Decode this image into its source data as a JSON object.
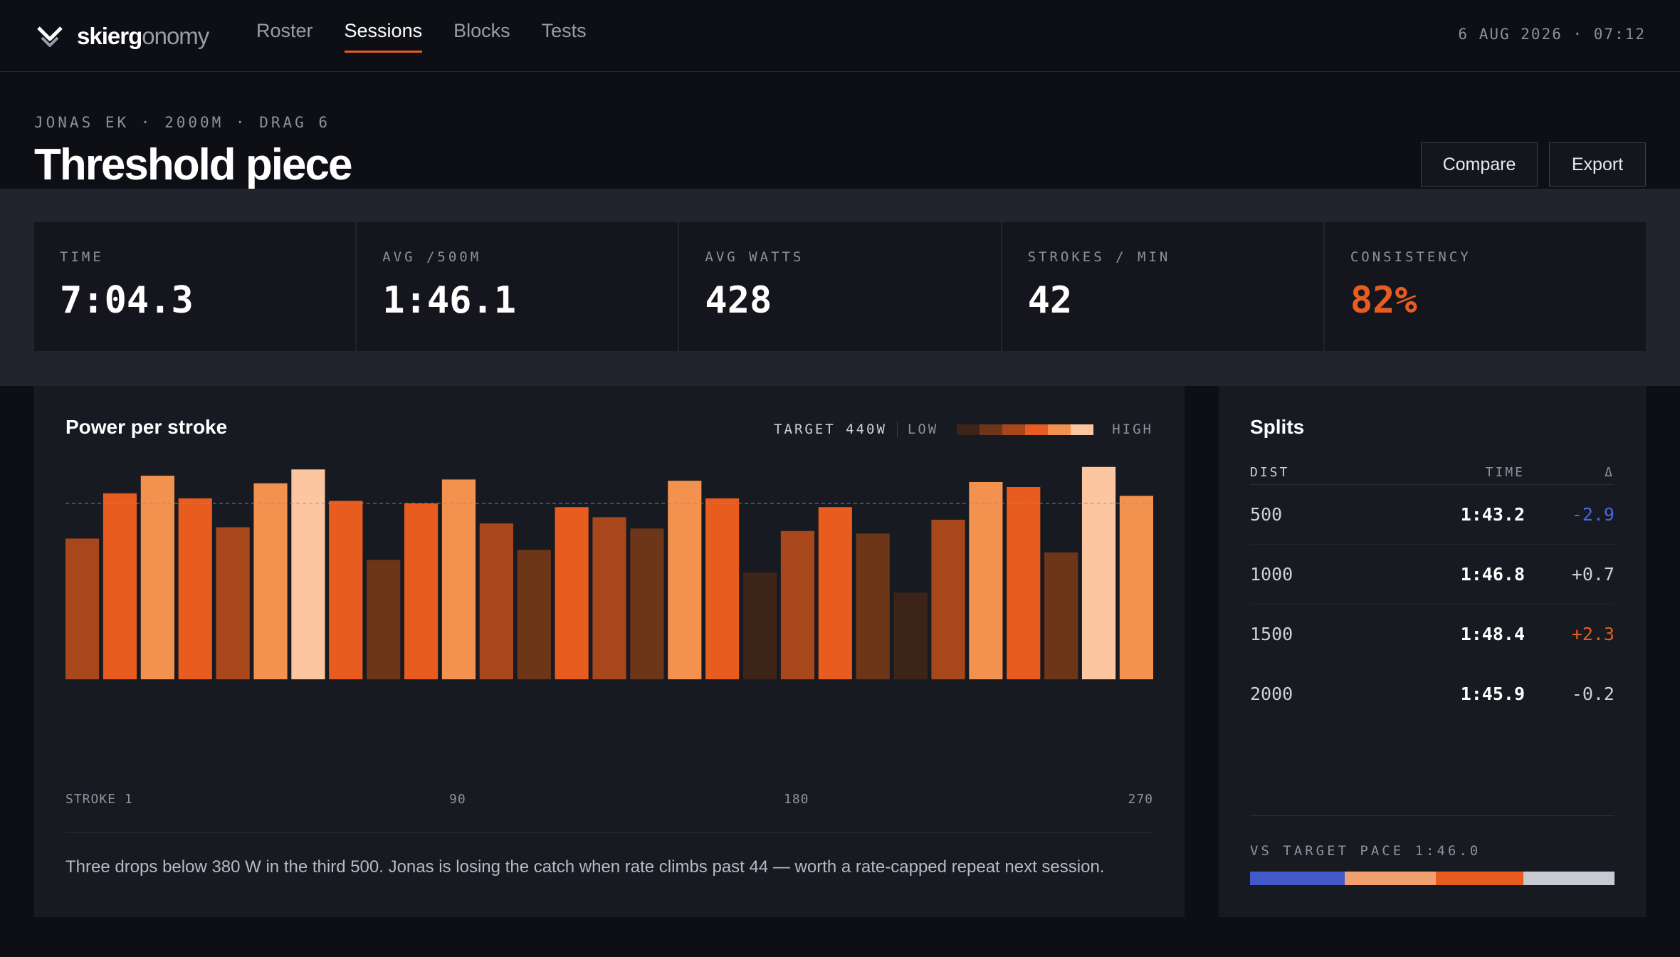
{
  "app": {
    "brand_bold": "skierg",
    "brand_light": "onomy",
    "nav": [
      {
        "label": "Roster",
        "active": false
      },
      {
        "label": "Sessions",
        "active": true
      },
      {
        "label": "Blocks",
        "active": false
      },
      {
        "label": "Tests",
        "active": false
      }
    ],
    "datetime": "6 AUG 2026 · 07:12"
  },
  "session": {
    "meta": "JONAS EK · 2000M · DRAG 6",
    "title": "Threshold piece",
    "actions": {
      "compare": "Compare",
      "export": "Export"
    }
  },
  "stats": [
    {
      "label": "TIME",
      "value": "7:04.3"
    },
    {
      "label": "AVG /500M",
      "value": "1:46.1"
    },
    {
      "label": "AVG WATTS",
      "value": "428"
    },
    {
      "label": "STROKES / MIN",
      "value": "42"
    },
    {
      "label": "CONSISTENCY",
      "value": "82%",
      "accent": true
    }
  ],
  "power_chart": {
    "title": "Power per stroke",
    "legend": {
      "target": "TARGET 440W",
      "low": "LOW",
      "high": "HIGH"
    },
    "x_labels": [
      "STROKE 1",
      "90",
      "180",
      "270"
    ],
    "note": "Three drops below 380 W in the third 500. Jonas is losing the catch when rate climbs past 44 — worth a rate-capped repeat next session."
  },
  "chart_data": {
    "type": "bar",
    "title": "Power per stroke",
    "x_ticks": [
      "STROKE 1",
      "90",
      "180",
      "270"
    ],
    "target_watts": 440,
    "values": [
      412,
      448,
      462,
      444,
      421,
      456,
      467,
      442,
      395,
      440,
      459,
      424,
      403,
      437,
      429,
      420,
      458,
      444,
      385,
      418,
      437,
      416,
      369,
      427,
      457,
      453,
      401,
      469,
      446
    ],
    "shade_levels": [
      2,
      3,
      4,
      3,
      2,
      4,
      5,
      3,
      1,
      3,
      4,
      2,
      1,
      3,
      2,
      1,
      4,
      3,
      0,
      2,
      3,
      1,
      0,
      2,
      4,
      3,
      1,
      5,
      4
    ],
    "color_ramp": [
      "#3d2418",
      "#6e3619",
      "#a9471c",
      "#e85c20",
      "#f3914f",
      "#fcc6a0"
    ]
  },
  "splits": {
    "title": "Splits",
    "headers": {
      "dist": "DIST",
      "time": "TIME",
      "delta": "Δ"
    },
    "rows": [
      {
        "dist": "500",
        "time": "1:43.2",
        "delta": "-2.9",
        "tone": "neg"
      },
      {
        "dist": "1000",
        "time": "1:46.8",
        "delta": "+0.7",
        "tone": "neutral"
      },
      {
        "dist": "1500",
        "time": "1:48.4",
        "delta": "+2.3",
        "tone": "pos"
      },
      {
        "dist": "2000",
        "time": "1:45.9",
        "delta": "-0.2",
        "tone": "neutral"
      }
    ],
    "pace_label": "VS TARGET PACE 1:46.0",
    "pace_segments": [
      {
        "share": 0.26,
        "color": "#4359c9"
      },
      {
        "share": 0.25,
        "color": "#f3a070"
      },
      {
        "share": 0.24,
        "color": "#e85c20"
      },
      {
        "share": 0.25,
        "color": "#c8c9d2"
      }
    ]
  }
}
